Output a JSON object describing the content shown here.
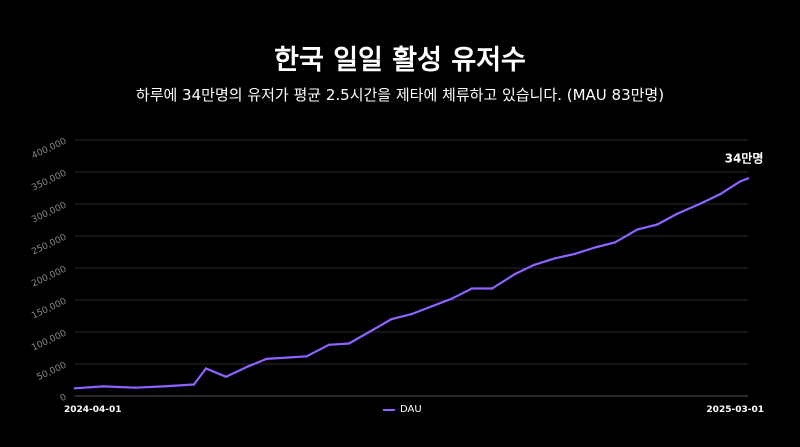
{
  "header": {
    "title": "한국 일일 활성 유저수",
    "subtitle": "하루에 34만명의 유저가 평균 2.5시간을 제타에 체류하고 있습니다. (MAU 83만명)"
  },
  "chart_data": {
    "type": "line",
    "title": "한국 일일 활성 유저수",
    "subtitle": "하루에 34만명의 유저가 평균 2.5시간을 제타에 체류하고 있습니다. (MAU 83만명)",
    "x_start": "2024-04-01",
    "x_end": "2025-03-01",
    "x_tick_labels": [
      "2024-04-01",
      "2025-03-01"
    ],
    "y_tick_labels": [
      "0",
      "50,000",
      "100,000",
      "150,000",
      "200,000",
      "250,000",
      "300,000",
      "350,000",
      "400,000"
    ],
    "ylim": [
      0,
      400000
    ],
    "grid": true,
    "legend_position": "bottom",
    "end_annotation": "34만명",
    "color": "#8e63ff",
    "series": [
      {
        "name": "DAU",
        "x": [
          "2024-04-01",
          "2024-04-15",
          "2024-05-01",
          "2024-05-15",
          "2024-05-30",
          "2024-06-05",
          "2024-06-15",
          "2024-06-25",
          "2024-07-05",
          "2024-07-15",
          "2024-07-25",
          "2024-08-05",
          "2024-08-15",
          "2024-08-25",
          "2024-09-05",
          "2024-09-15",
          "2024-09-25",
          "2024-10-05",
          "2024-10-15",
          "2024-10-25",
          "2024-11-05",
          "2024-11-15",
          "2024-11-25",
          "2024-12-05",
          "2024-12-15",
          "2024-12-25",
          "2025-01-05",
          "2025-01-15",
          "2025-01-25",
          "2025-02-05",
          "2025-02-15",
          "2025-02-25",
          "2025-03-01"
        ],
        "values": [
          12000,
          15000,
          13000,
          15000,
          18000,
          43000,
          30000,
          45000,
          58000,
          60000,
          62000,
          80000,
          82000,
          100000,
          120000,
          128000,
          140000,
          152000,
          168000,
          168000,
          190000,
          205000,
          215000,
          222000,
          232000,
          240000,
          260000,
          268000,
          285000,
          300000,
          315000,
          335000,
          340000
        ]
      }
    ]
  },
  "legend": {
    "label": "DAU"
  }
}
